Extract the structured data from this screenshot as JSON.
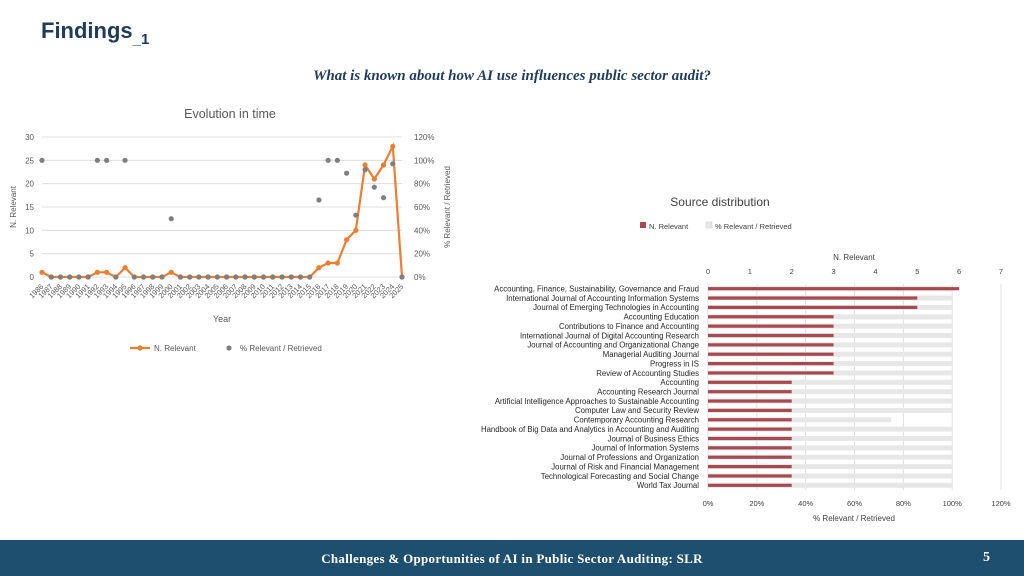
{
  "slide": {
    "title": "Findings",
    "title_sub": "_1",
    "question": "What is known about how AI use influences public sector audit?",
    "footer": "Challenges & Opportunities of AI in Public Sector Auditing: SLR",
    "page_number": "5"
  },
  "colors": {
    "relevant_line": "#ed7d31",
    "pct_points": "#7f7f7f",
    "bar_relevant": "#a8494f",
    "bar_pct": "#e7e7e7",
    "title": "#1f3b5c",
    "footer_bg": "#1f4f6e"
  },
  "chart_data": [
    {
      "type": "line",
      "title": "Evolution in time",
      "xlabel": "Year",
      "ylabel": "N. Relevant",
      "y2label": "% Relevant / Retrieved",
      "ylim": [
        0,
        30
      ],
      "y2lim": [
        0,
        120
      ],
      "yticks": [
        "0",
        "5",
        "10",
        "15",
        "20",
        "25",
        "30"
      ],
      "y2ticks": [
        "0%",
        "20%",
        "40%",
        "60%",
        "80%",
        "100%",
        "120%"
      ],
      "grid": true,
      "legend_position": "bottom",
      "x": [
        "1986",
        "1987",
        "1988",
        "1989",
        "1990",
        "1991",
        "1992",
        "1993",
        "1994",
        "1995",
        "1996",
        "1997",
        "1998",
        "1999",
        "2000",
        "2001",
        "2002",
        "2003",
        "2004",
        "2005",
        "2006",
        "2007",
        "2008",
        "2009",
        "2010",
        "2011",
        "2012",
        "2013",
        "2014",
        "2015",
        "2016",
        "2017",
        "2018",
        "2019",
        "2020",
        "2021",
        "2022",
        "2023",
        "2024",
        "2025"
      ],
      "series": [
        {
          "name": "N. Relevant",
          "type": "line",
          "axis": "left",
          "values": [
            1,
            0,
            0,
            0,
            0,
            0,
            1,
            1,
            0,
            2,
            0,
            0,
            0,
            0,
            1,
            0,
            0,
            0,
            0,
            0,
            0,
            0,
            0,
            0,
            0,
            0,
            0,
            0,
            0,
            0,
            2,
            3,
            3,
            8,
            10,
            24,
            21,
            24,
            28,
            0
          ]
        },
        {
          "name": "% Relevant / Retrieved",
          "type": "scatter",
          "axis": "right",
          "values": [
            100,
            0,
            0,
            0,
            0,
            0,
            100,
            100,
            0,
            100,
            0,
            0,
            0,
            0,
            50,
            0,
            0,
            0,
            0,
            0,
            0,
            0,
            0,
            0,
            0,
            0,
            0,
            0,
            0,
            0,
            66,
            100,
            100,
            89,
            53,
            92,
            77,
            68,
            97,
            0
          ]
        }
      ]
    },
    {
      "type": "bar",
      "orientation": "horizontal",
      "title": "Source distribution",
      "xlabel": "% Relevant / Retrieved",
      "x2label": "N. Relevant",
      "xlim": [
        0,
        120
      ],
      "x2lim": [
        0,
        7
      ],
      "xticks": [
        "0%",
        "20%",
        "40%",
        "60%",
        "80%",
        "100%",
        "120%"
      ],
      "x2ticks": [
        "0",
        "1",
        "2",
        "3",
        "4",
        "5",
        "6",
        "7"
      ],
      "grid": true,
      "legend_position": "top-left",
      "categories": [
        "Accounting, Finance, Sustainability, Governance and Fraud",
        "International Journal of Accounting Information Systems",
        "Journal of Emerging Technologies in Accounting",
        "Accounting Education",
        "Contributions to Finance and Accounting",
        "International Journal of Digital Accounting Research",
        "Journal of Accounting and Organizational Change",
        "Managerial Auditing Journal",
        "Progress in IS",
        "Review of Accounting Studies",
        "Accounting",
        "Accounting Research Journal",
        "Artificial Intelligence Approaches to Sustainable Accounting",
        "Computer Law and Security Review",
        "Contemporary Accounting Research",
        "Handbook of Big Data and Analytics in Accounting and Auditing",
        "Journal of Business Ethics",
        "Journal of Information Systems",
        "Journal of Professions and Organization",
        "Journal of Risk and Financial Management",
        "Technological Forecasting and Social Change",
        "World Tax Journal"
      ],
      "series": [
        {
          "name": "N. Relevant",
          "axis": "top",
          "values": [
            6,
            5,
            5,
            3,
            3,
            3,
            3,
            3,
            3,
            3,
            2,
            2,
            2,
            2,
            2,
            2,
            2,
            2,
            2,
            2,
            2,
            2
          ]
        },
        {
          "name": "% Relevant / Retrieved",
          "axis": "bottom",
          "values": [
            100,
            100,
            100,
            100,
            100,
            100,
            100,
            100,
            100,
            100,
            100,
            100,
            100,
            100,
            75,
            100,
            100,
            100,
            100,
            100,
            100,
            100
          ]
        }
      ]
    }
  ]
}
